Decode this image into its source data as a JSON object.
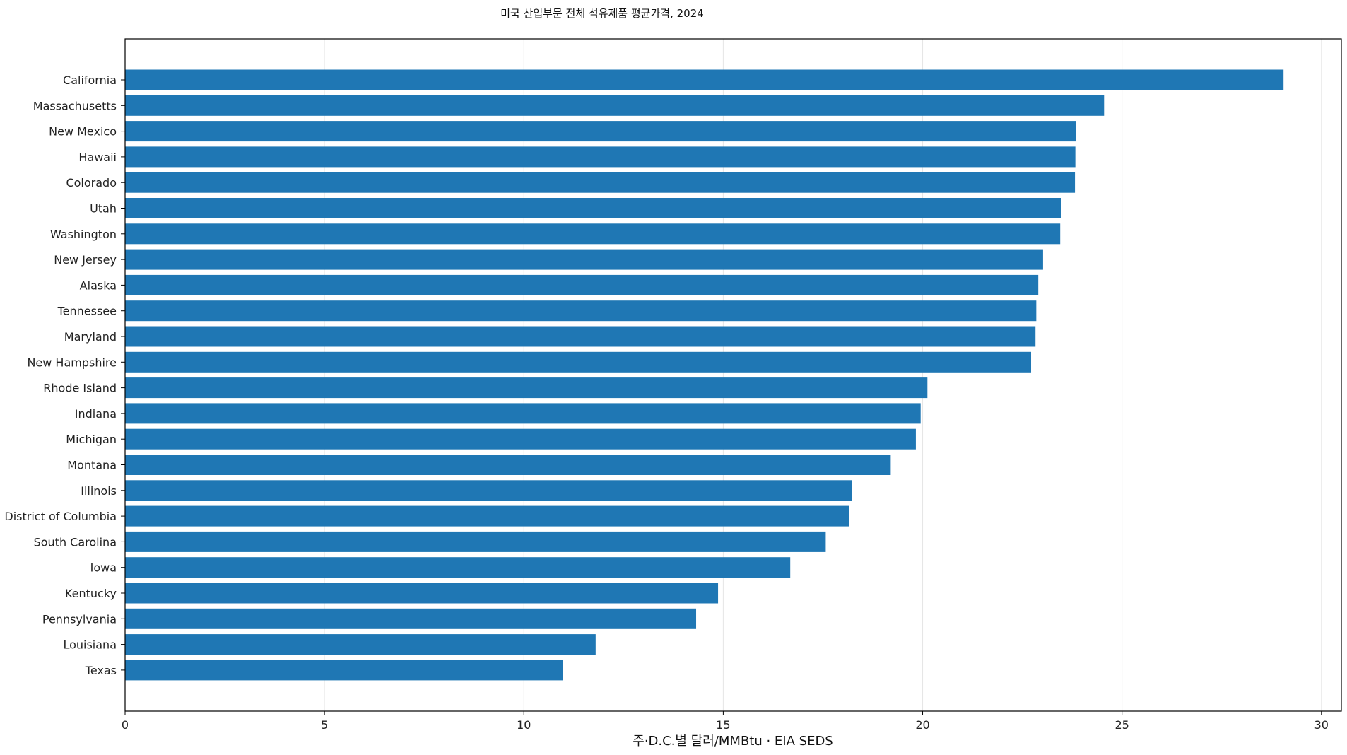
{
  "chart_data": {
    "type": "bar",
    "orientation": "horizontal",
    "title": "미국 산업부문 전체 석유제품 평균가격, 2024",
    "xlabel": "주·D.C.별 달러/MMBtu · EIA SEDS",
    "ylabel": "",
    "xlim": [
      0,
      30.5
    ],
    "xticks": [
      0,
      5,
      10,
      15,
      20,
      25,
      30
    ],
    "grid": "x",
    "bar_color": "#1f77b4",
    "categories": [
      "California",
      "Massachusetts",
      "New Mexico",
      "Hawaii",
      "Colorado",
      "Utah",
      "Washington",
      "New Jersey",
      "Alaska",
      "Tennessee",
      "Maryland",
      "New Hampshire",
      "Rhode Island",
      "Indiana",
      "Michigan",
      "Montana",
      "Illinois",
      "District of Columbia",
      "South Carolina",
      "Iowa",
      "Kentucky",
      "Pennsylvania",
      "Louisiana",
      "Texas"
    ],
    "values": [
      29.05,
      24.55,
      23.85,
      23.83,
      23.82,
      23.48,
      23.45,
      23.02,
      22.9,
      22.85,
      22.83,
      22.72,
      20.12,
      19.95,
      19.83,
      19.2,
      18.23,
      18.15,
      17.57,
      16.68,
      14.87,
      14.32,
      11.8,
      10.98
    ]
  }
}
